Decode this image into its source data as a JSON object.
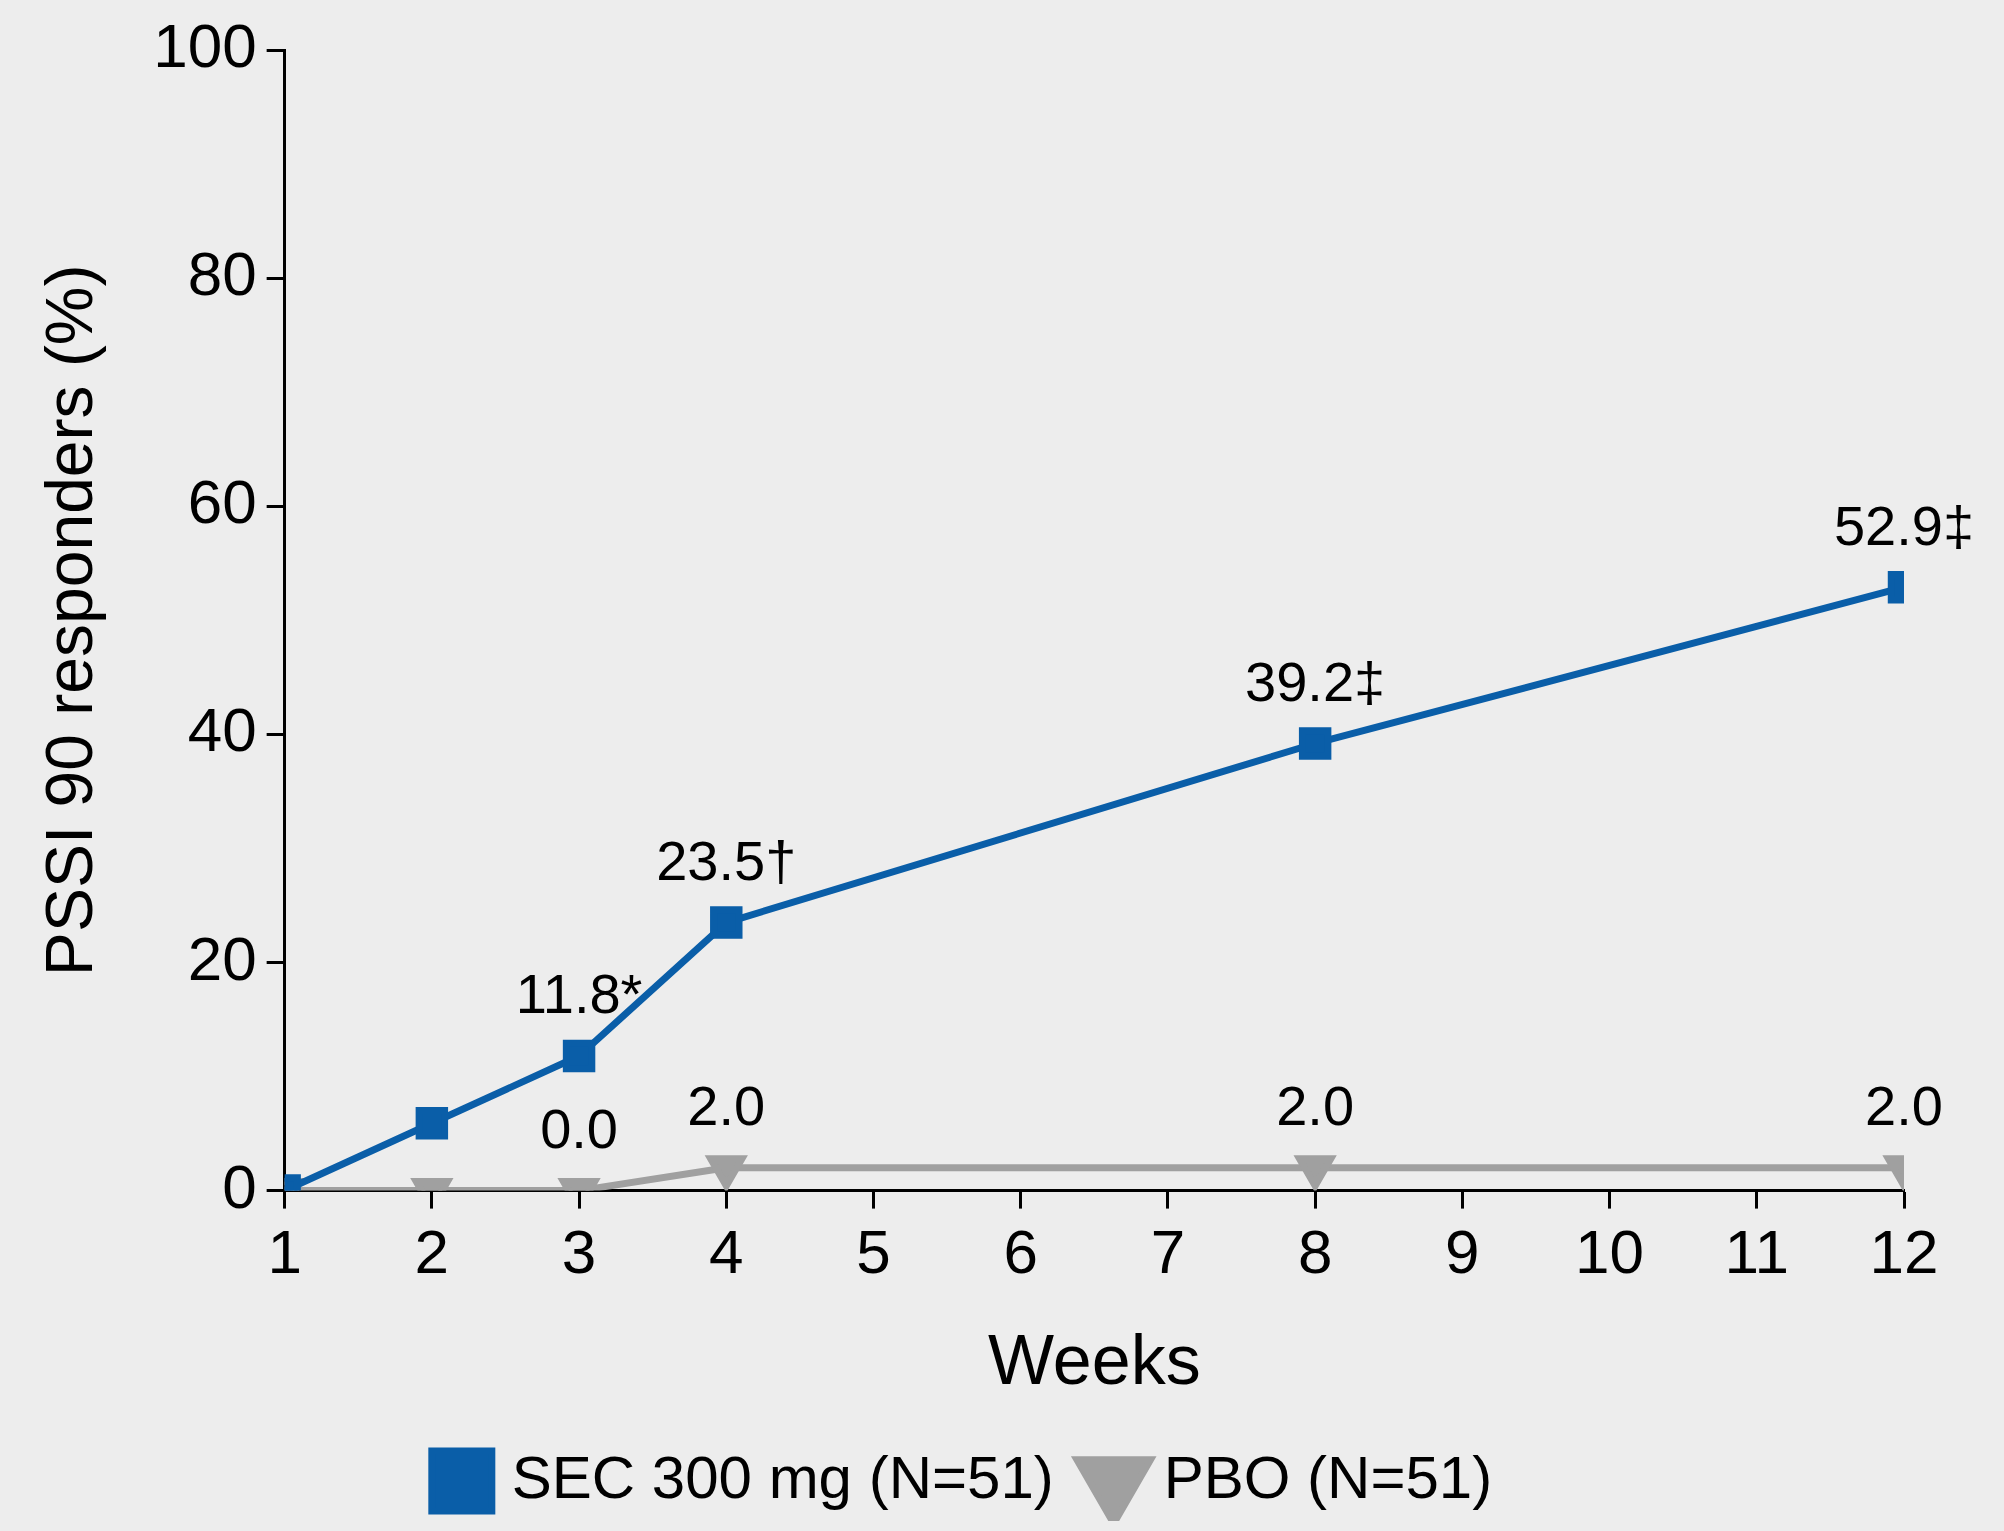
{
  "chart_data": {
    "type": "line",
    "xlabel": "Weeks",
    "ylabel": "PSSI 90 responders (%)",
    "x": [
      1,
      2,
      3,
      4,
      8,
      12
    ],
    "xlim": [
      1,
      12
    ],
    "xticks": [
      1,
      2,
      3,
      4,
      5,
      6,
      7,
      8,
      9,
      10,
      11,
      12
    ],
    "ylim": [
      0,
      100
    ],
    "yticks": [
      0,
      20,
      40,
      60,
      80,
      100
    ],
    "grid": false,
    "legend": "bottom",
    "line_style": "solid",
    "series": [
      {
        "name": "SEC 300 mg (N=51)",
        "color": "#0a5ea8",
        "marker": "square",
        "values": [
          0,
          5.9,
          11.8,
          23.5,
          39.2,
          52.9
        ],
        "value_labels": [
          null,
          null,
          "11.8*",
          "23.5†",
          "39.2‡",
          "52.9‡"
        ]
      },
      {
        "name": "PBO (N=51)",
        "color": "#a0a0a0",
        "marker": "triangle",
        "values": [
          0,
          0,
          0,
          2.0,
          2.0,
          2.0
        ],
        "value_labels": [
          null,
          null,
          "0.0",
          "2.0",
          "2.0",
          "2.0"
        ]
      }
    ]
  }
}
